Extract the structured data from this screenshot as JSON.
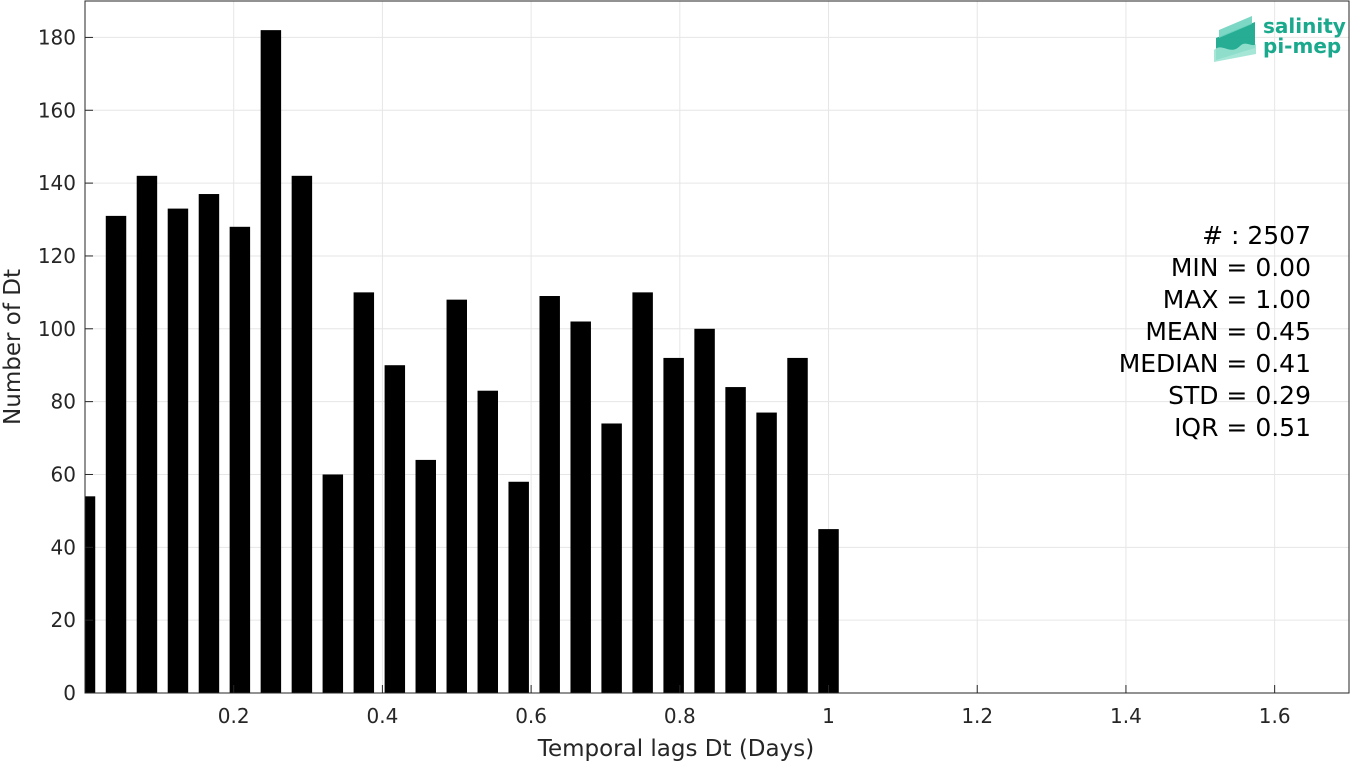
{
  "chart_data": {
    "type": "bar",
    "xlabel": "Temporal lags Dt (Days)",
    "ylabel": "Number of Dt",
    "xlim": [
      0,
      1.7
    ],
    "ylim": [
      0,
      190
    ],
    "x_ticks": [
      0.2,
      0.4,
      0.6,
      0.8,
      1.0,
      1.2,
      1.4,
      1.6
    ],
    "x_tick_labels": [
      "0.2",
      "0.4",
      "0.6",
      "0.8",
      "1",
      "1.2",
      "1.4",
      "1.6"
    ],
    "y_ticks": [
      0,
      20,
      40,
      60,
      80,
      100,
      120,
      140,
      160,
      180
    ],
    "y_tick_labels": [
      "0",
      "20",
      "40",
      "60",
      "80",
      "100",
      "120",
      "140",
      "160",
      "180"
    ],
    "grid": true,
    "bar_color": "#000000",
    "bin_width": 0.0417,
    "x": [
      0.0,
      0.0417,
      0.0833,
      0.125,
      0.1667,
      0.2083,
      0.25,
      0.2917,
      0.3333,
      0.375,
      0.4167,
      0.4583,
      0.5,
      0.5417,
      0.5833,
      0.625,
      0.6667,
      0.7083,
      0.75,
      0.7917,
      0.8333,
      0.875,
      0.9167,
      0.9583,
      1.0
    ],
    "values": [
      54,
      131,
      142,
      133,
      137,
      128,
      182,
      142,
      60,
      110,
      90,
      64,
      108,
      83,
      58,
      109,
      102,
      74,
      110,
      92,
      100,
      84,
      77,
      92,
      45
    ],
    "stats": [
      "# : 2507",
      "MIN = 0.00",
      "MAX =  1.00",
      "MEAN = 0.45",
      "MEDIAN = 0.41",
      "STD = 0.29",
      "IQR = 0.51"
    ],
    "logo": {
      "line1": "salinity",
      "line2": "pi-mep",
      "color": "#1aa98d"
    }
  }
}
